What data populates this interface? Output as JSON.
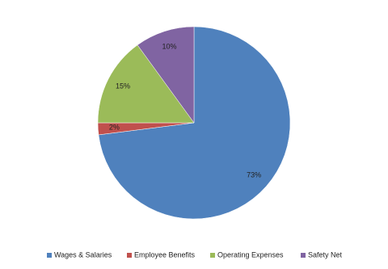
{
  "chart_data": {
    "type": "pie",
    "categories": [
      "Wages & Salaries",
      "Employee Benefits",
      "Operating Expenses",
      "Safety Net"
    ],
    "values": [
      73,
      2,
      15,
      10
    ],
    "value_labels": [
      "73%",
      "2%",
      "15%",
      "10%"
    ],
    "colors": [
      "#4f81bd",
      "#c0504d",
      "#9bbb59",
      "#8064a2"
    ],
    "legend": "bottom"
  }
}
